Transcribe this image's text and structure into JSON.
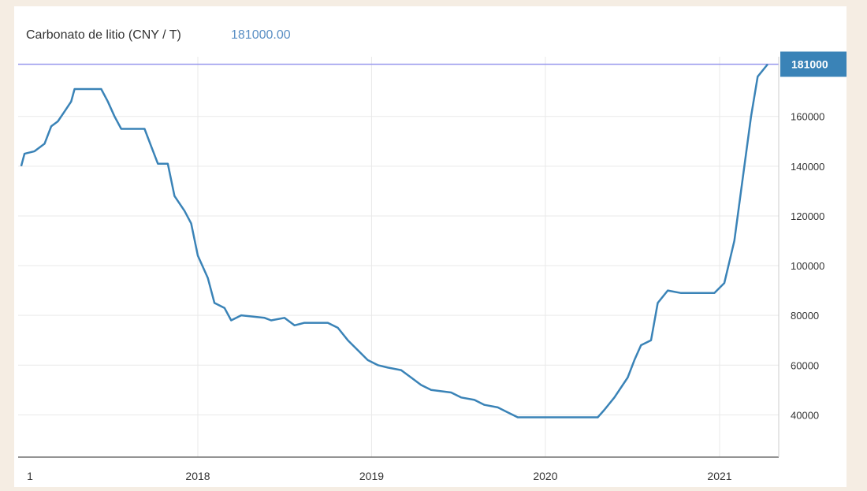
{
  "header": {
    "title": "Carbonato de litio (CNY / T)",
    "current_value": "181000.00"
  },
  "colors": {
    "line": "#3a83b7",
    "reference_line": "#9999ee",
    "badge": "#3a83b7",
    "grid": "#e9e9e9"
  },
  "chart_data": {
    "type": "line",
    "title": "Carbonato de litio (CNY / T)",
    "xlabel": "",
    "ylabel": "",
    "x_tick_labels": [
      "1",
      "2018",
      "2019",
      "2020",
      "2021"
    ],
    "y_tick_labels": [
      "40000",
      "60000",
      "80000",
      "100000",
      "120000",
      "140000",
      "160000"
    ],
    "ylim": [
      23000,
      184000
    ],
    "grid": true,
    "last_value_label": "181000",
    "series": [
      {
        "values": [
          [
            "2016-12-26",
            140000
          ],
          [
            "2017-01-02",
            145000
          ],
          [
            "2017-01-23",
            146000
          ],
          [
            "2017-02-13",
            149000
          ],
          [
            "2017-02-27",
            156000
          ],
          [
            "2017-03-13",
            158000
          ],
          [
            "2017-03-27",
            162000
          ],
          [
            "2017-04-10",
            166000
          ],
          [
            "2017-04-17",
            171000
          ],
          [
            "2017-06-12",
            171000
          ],
          [
            "2017-06-26",
            166000
          ],
          [
            "2017-07-10",
            160000
          ],
          [
            "2017-07-24",
            155000
          ],
          [
            "2017-09-11",
            155000
          ],
          [
            "2017-09-25",
            148000
          ],
          [
            "2017-10-09",
            141000
          ],
          [
            "2017-10-30",
            141000
          ],
          [
            "2017-11-13",
            128000
          ],
          [
            "2017-12-04",
            122000
          ],
          [
            "2017-12-18",
            117000
          ],
          [
            "2018-01-01",
            104000
          ],
          [
            "2018-01-22",
            95000
          ],
          [
            "2018-02-05",
            85000
          ],
          [
            "2018-02-26",
            83000
          ],
          [
            "2018-03-12",
            78000
          ],
          [
            "2018-04-02",
            80000
          ],
          [
            "2018-05-21",
            79000
          ],
          [
            "2018-06-04",
            78000
          ],
          [
            "2018-07-02",
            79000
          ],
          [
            "2018-07-23",
            76000
          ],
          [
            "2018-08-13",
            77000
          ],
          [
            "2018-09-10",
            77000
          ],
          [
            "2018-10-01",
            77000
          ],
          [
            "2018-10-22",
            75000
          ],
          [
            "2018-11-12",
            70000
          ],
          [
            "2018-12-03",
            66000
          ],
          [
            "2018-12-24",
            62000
          ],
          [
            "2019-01-14",
            60000
          ],
          [
            "2019-02-04",
            59000
          ],
          [
            "2019-03-04",
            58000
          ],
          [
            "2019-03-25",
            55000
          ],
          [
            "2019-04-15",
            52000
          ],
          [
            "2019-05-06",
            50000
          ],
          [
            "2019-06-17",
            49000
          ],
          [
            "2019-07-08",
            47000
          ],
          [
            "2019-08-05",
            46000
          ],
          [
            "2019-08-26",
            44000
          ],
          [
            "2019-09-23",
            43000
          ],
          [
            "2019-10-14",
            41000
          ],
          [
            "2019-11-04",
            39000
          ],
          [
            "2020-04-20",
            39000
          ],
          [
            "2020-05-04",
            42000
          ],
          [
            "2020-05-25",
            47000
          ],
          [
            "2020-06-22",
            55000
          ],
          [
            "2020-07-06",
            62000
          ],
          [
            "2020-07-20",
            68000
          ],
          [
            "2020-08-10",
            70000
          ],
          [
            "2020-08-24",
            85000
          ],
          [
            "2020-09-14",
            90000
          ],
          [
            "2020-10-12",
            89000
          ],
          [
            "2020-12-21",
            89000
          ],
          [
            "2021-01-11",
            93000
          ],
          [
            "2021-02-01",
            110000
          ],
          [
            "2021-02-22",
            140000
          ],
          [
            "2021-03-08",
            160000
          ],
          [
            "2021-03-22",
            176000
          ],
          [
            "2021-04-12",
            181000
          ]
        ]
      }
    ]
  }
}
